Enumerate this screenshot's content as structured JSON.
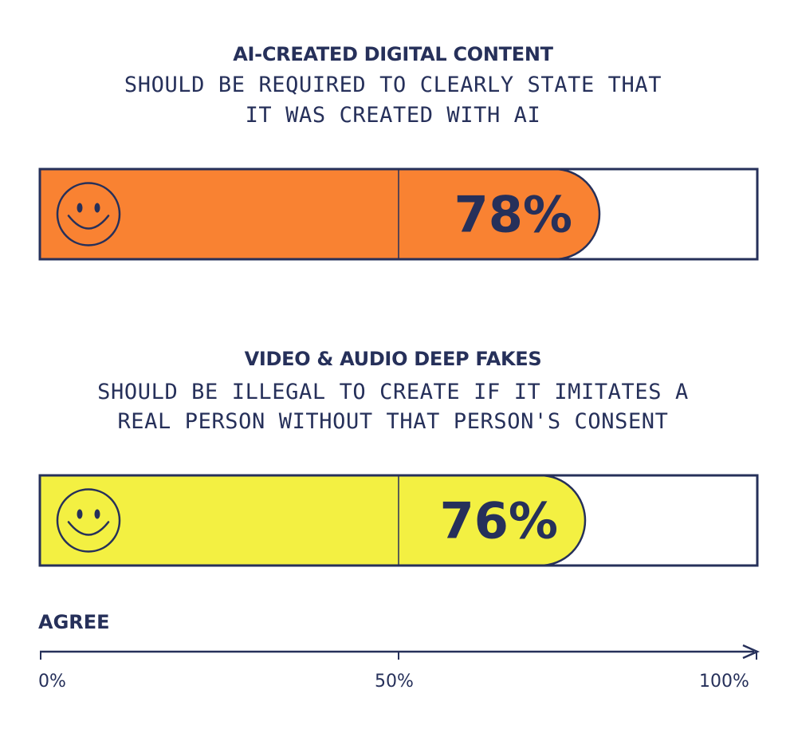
{
  "chart_data": {
    "type": "bar",
    "orientation": "horizontal",
    "xlim": [
      0,
      100
    ],
    "xlabel": "AGREE",
    "xticks": [
      "0%",
      "50%",
      "100%"
    ],
    "grid": false,
    "categories": [
      {
        "title": "AI-CREATED DIGITAL CONTENT",
        "subtitle_lines": [
          "SHOULD BE REQUIRED TO CLEARLY STATE THAT",
          "IT WAS CREATED WITH AI"
        ],
        "value": 78,
        "label": "78%",
        "color": "#f98232",
        "icon": "smiley-icon"
      },
      {
        "title": "VIDEO & AUDIO DEEP FAKES",
        "subtitle_lines": [
          "SHOULD BE ILLEGAL TO CREATE IF IT IMITATES A",
          "REAL PERSON WITHOUT THAT PERSON'S CONSENT"
        ],
        "value": 76,
        "label": "76%",
        "color": "#f3f042",
        "icon": "smiley-icon"
      }
    ]
  },
  "colors": {
    "ink": "#26305a",
    "background": "#ffffff"
  }
}
